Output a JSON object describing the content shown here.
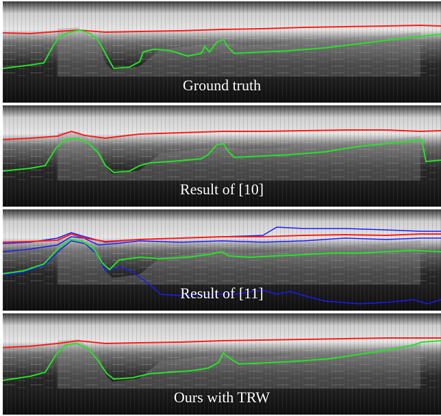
{
  "figure": {
    "panels": [
      {
        "caption": "Ground truth"
      },
      {
        "caption": "Result of [10]"
      },
      {
        "caption": "Result of [11]"
      },
      {
        "caption": "Ours with TRW"
      }
    ]
  },
  "colors": {
    "top_layer_trace": "#ff1a1a",
    "bottom_layer_trace": "#22e622",
    "alternative_traces": "#1a1aff"
  }
}
